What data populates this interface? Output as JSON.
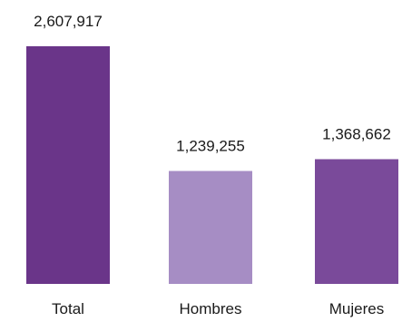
{
  "chart_data": {
    "type": "bar",
    "title": "",
    "xlabel": "",
    "ylabel": "",
    "categories": [
      "Total",
      "Hombres",
      "Mujeres"
    ],
    "values": [
      2607917,
      1239255,
      1368662
    ],
    "value_labels": [
      "2,607,917",
      "1,239,255",
      "1,368,662"
    ],
    "bar_colors": [
      "#6a3589",
      "#a68dc4",
      "#7a4a9a"
    ],
    "ylim": [
      0,
      2607917
    ],
    "grid": false,
    "legend": "none"
  }
}
